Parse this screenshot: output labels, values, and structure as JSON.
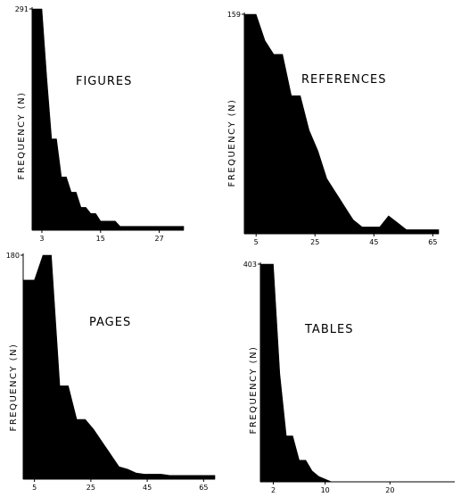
{
  "chart_data": [
    {
      "type": "area",
      "title": "FIGURES",
      "ylabel": "FREQUENCY (N)",
      "xlabel": "",
      "xticks": [
        3,
        15,
        27
      ],
      "yticks": [
        291
      ],
      "xlim": [
        1,
        32
      ],
      "ylim": [
        0,
        291
      ],
      "x": [
        1,
        2,
        3,
        4,
        5,
        6,
        7,
        8,
        9,
        10,
        11,
        12,
        13,
        14,
        15,
        16,
        17,
        18,
        19,
        20,
        21,
        22,
        23,
        24,
        25,
        26,
        27,
        28,
        29,
        30,
        31,
        32
      ],
      "values": [
        291,
        291,
        291,
        200,
        120,
        120,
        70,
        70,
        50,
        50,
        30,
        30,
        22,
        22,
        12,
        12,
        12,
        12,
        5,
        5,
        5,
        5,
        5,
        5,
        5,
        5,
        5,
        5,
        5,
        5,
        5,
        5
      ]
    },
    {
      "type": "area",
      "title": "REFERENCES",
      "ylabel": "FREQUENCY (N)",
      "xlabel": "",
      "xticks": [
        5,
        25,
        45,
        65
      ],
      "yticks": [
        159
      ],
      "xlim": [
        1,
        67
      ],
      "ylim": [
        0,
        159
      ],
      "x": [
        1,
        5,
        8,
        11,
        14,
        17,
        20,
        23,
        26,
        29,
        32,
        35,
        38,
        41,
        44,
        47,
        50,
        53,
        56,
        59,
        62,
        65,
        67
      ],
      "values": [
        159,
        159,
        140,
        130,
        130,
        100,
        100,
        75,
        60,
        40,
        30,
        20,
        10,
        5,
        5,
        5,
        13,
        8,
        3,
        3,
        3,
        3,
        3
      ]
    },
    {
      "type": "area",
      "title": "PAGES",
      "ylabel": "FREQUENCY (N)",
      "xlabel": "",
      "xticks": [
        5,
        25,
        45,
        65
      ],
      "yticks": [
        180
      ],
      "xlim": [
        1,
        69
      ],
      "ylim": [
        0,
        180
      ],
      "x": [
        1,
        5,
        8,
        11,
        14,
        17,
        20,
        23,
        26,
        29,
        32,
        35,
        38,
        41,
        44,
        47,
        50,
        53,
        56,
        59,
        62,
        65,
        69
      ],
      "values": [
        160,
        160,
        180,
        180,
        75,
        75,
        48,
        48,
        40,
        30,
        20,
        10,
        8,
        5,
        4,
        4,
        4,
        3,
        3,
        3,
        3,
        3,
        3
      ]
    },
    {
      "type": "area",
      "title": "TABLES",
      "ylabel": "FREQUENCY (N)",
      "xlabel": "",
      "xticks": [
        2,
        10,
        20
      ],
      "yticks": [
        403
      ],
      "xlim": [
        0,
        30
      ],
      "ylim": [
        0,
        403
      ],
      "x": [
        0,
        1,
        2,
        3,
        4,
        5,
        6,
        7,
        8,
        9,
        10,
        11,
        12,
        13,
        14,
        15
      ],
      "values": [
        403,
        403,
        403,
        200,
        85,
        85,
        40,
        40,
        20,
        10,
        5,
        0,
        0,
        0,
        0,
        0
      ]
    }
  ]
}
